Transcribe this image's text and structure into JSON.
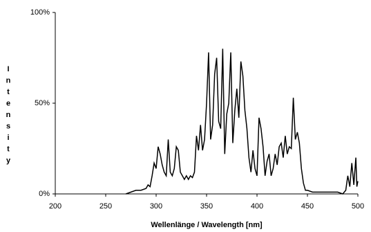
{
  "chart_data": {
    "type": "line",
    "x_label": "Wellenlänge / Wavelength [nm]",
    "y_label": "Intensity",
    "xlim": [
      200,
      500
    ],
    "xticks": [
      200,
      250,
      300,
      350,
      400,
      450,
      500
    ],
    "ylim": [
      0,
      100
    ],
    "yticks": [
      {
        "value": 0,
        "label": "0%"
      },
      {
        "value": 50,
        "label": "50%"
      },
      {
        "value": 100,
        "label": "100%"
      }
    ],
    "grid": false,
    "series": [
      {
        "color": "#000000",
        "x": [
          270,
          275,
          280,
          285,
          290,
          292,
          294,
          296,
          298,
          300,
          302,
          304,
          306,
          308,
          310,
          312,
          314,
          316,
          318,
          320,
          322,
          324,
          326,
          328,
          330,
          332,
          334,
          336,
          338,
          340,
          342,
          344,
          346,
          348,
          350,
          352,
          354,
          356,
          358,
          360,
          362,
          364,
          366,
          368,
          370,
          372,
          374,
          376,
          378,
          380,
          382,
          384,
          386,
          388,
          390,
          392,
          394,
          396,
          398,
          400,
          402,
          404,
          406,
          408,
          410,
          412,
          414,
          416,
          418,
          420,
          422,
          424,
          426,
          428,
          430,
          432,
          434,
          436,
          438,
          440,
          442,
          444,
          446,
          448,
          450,
          455,
          460,
          470,
          480,
          485,
          488,
          490,
          492,
          494,
          496,
          498,
          499,
          500
        ],
        "values": [
          0,
          1,
          2,
          2,
          3,
          5,
          4,
          10,
          17,
          14,
          26,
          22,
          16,
          12,
          10,
          30,
          12,
          10,
          14,
          26,
          24,
          12,
          10,
          8,
          10,
          8,
          10,
          9,
          12,
          32,
          24,
          38,
          24,
          30,
          50,
          78,
          30,
          38,
          66,
          75,
          40,
          36,
          80,
          22,
          44,
          50,
          78,
          28,
          46,
          58,
          42,
          73,
          65,
          46,
          36,
          20,
          12,
          24,
          14,
          10,
          42,
          36,
          26,
          10,
          18,
          22,
          10,
          14,
          22,
          16,
          26,
          28,
          20,
          32,
          22,
          26,
          25,
          53,
          30,
          34,
          28,
          14,
          6,
          2,
          2,
          1,
          1,
          1,
          1,
          0,
          2,
          10,
          4,
          17,
          5,
          20,
          4,
          7
        ]
      }
    ]
  }
}
